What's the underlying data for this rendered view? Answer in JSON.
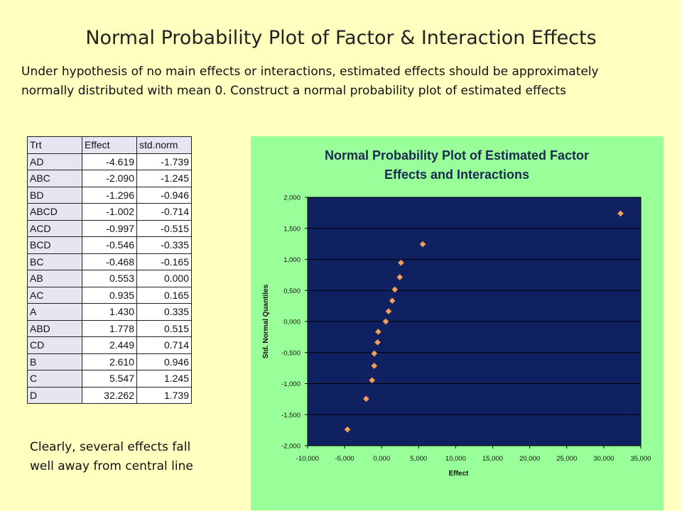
{
  "slide": {
    "title": "Normal Probability Plot of Factor & Interaction Effects",
    "intro": "Under hypothesis of no main effects or interactions, estimated effects should be approximately normally distributed with mean 0. Construct a normal probability plot of estimated effects",
    "note": "Clearly, several effects fall well away from central line"
  },
  "table": {
    "headers": [
      "Trt",
      "Effect",
      "std.norm"
    ],
    "rows": [
      [
        "AD",
        "-4.619",
        "-1.739"
      ],
      [
        "ABC",
        "-2.090",
        "-1.245"
      ],
      [
        "BD",
        "-1.296",
        "-0.946"
      ],
      [
        "ABCD",
        "-1.002",
        "-0.714"
      ],
      [
        "ACD",
        "-0.997",
        "-0.515"
      ],
      [
        "BCD",
        "-0.546",
        "-0.335"
      ],
      [
        "BC",
        "-0.468",
        "-0.165"
      ],
      [
        "AB",
        "0.553",
        "0.000"
      ],
      [
        "AC",
        "0.935",
        "0.165"
      ],
      [
        "A",
        "1.430",
        "0.335"
      ],
      [
        "ABD",
        "1.778",
        "0.515"
      ],
      [
        "CD",
        "2.449",
        "0.714"
      ],
      [
        "B",
        "2.610",
        "0.946"
      ],
      [
        "C",
        "5.547",
        "1.245"
      ],
      [
        "D",
        "32.262",
        "1.739"
      ]
    ]
  },
  "chart_data": {
    "type": "scatter",
    "title": "Normal Probability Plot of Estimated Factor Effects and Interactions",
    "xlabel": "Effect",
    "ylabel": "Std. Normal Quantiles",
    "xlim": [
      -10,
      35
    ],
    "ylim": [
      -2,
      2
    ],
    "x_ticks": [
      "-10,000",
      "-5,000",
      "0,000",
      "5,000",
      "10,000",
      "15,000",
      "20,000",
      "25,000",
      "30,000",
      "35,000"
    ],
    "y_ticks": [
      "2,000",
      "1,500",
      "1,000",
      "0,500",
      "0,000",
      "-0,500",
      "-1,000",
      "-1,500",
      "-2,000"
    ],
    "grid": "horizontal",
    "plot_bg": "#0f2160",
    "chart_bg": "#99ff99",
    "marker_color": "#f0a060",
    "points": [
      {
        "x": -4.619,
        "y": -1.739
      },
      {
        "x": -2.09,
        "y": -1.245
      },
      {
        "x": -1.296,
        "y": -0.946
      },
      {
        "x": -1.002,
        "y": -0.714
      },
      {
        "x": -0.997,
        "y": -0.515
      },
      {
        "x": -0.546,
        "y": -0.335
      },
      {
        "x": -0.468,
        "y": -0.165
      },
      {
        "x": 0.553,
        "y": 0.0
      },
      {
        "x": 0.935,
        "y": 0.165
      },
      {
        "x": 1.43,
        "y": 0.335
      },
      {
        "x": 1.778,
        "y": 0.515
      },
      {
        "x": 2.449,
        "y": 0.714
      },
      {
        "x": 2.61,
        "y": 0.946
      },
      {
        "x": 5.547,
        "y": 1.245
      },
      {
        "x": 32.262,
        "y": 1.739
      }
    ]
  }
}
